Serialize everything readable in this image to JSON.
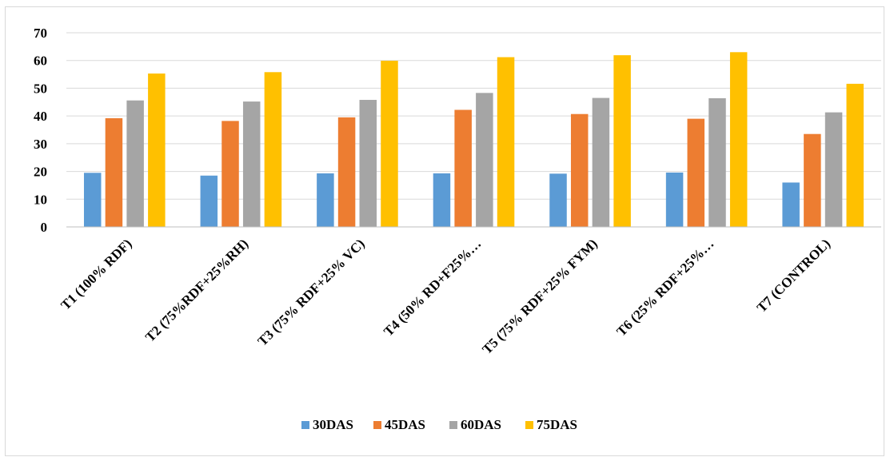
{
  "chart_data": {
    "type": "bar",
    "title": "",
    "xlabel": "",
    "ylabel": "",
    "ylim": [
      0,
      70
    ],
    "yticks": [
      0,
      10,
      20,
      30,
      40,
      50,
      60,
      70
    ],
    "grid": true,
    "legend_position": "bottom",
    "categories": [
      "T1 (100% RDF)",
      "T2 (75%RDF+25%RH)",
      "T3 (75% RDF+25% VC)",
      "T4 (50% RD+F25%…",
      "T5 (75% RDF+25% FYM)",
      "T6 (25% RDF+25%…",
      "T7 (CONTROL)"
    ],
    "series": [
      {
        "name": "30DAS",
        "color": "#5b9bd5",
        "values": [
          19.5,
          18.5,
          19.3,
          19.3,
          19.2,
          19.6,
          16.0
        ]
      },
      {
        "name": "45DAS",
        "color": "#ed7d31",
        "values": [
          39.2,
          38.2,
          39.5,
          42.2,
          40.7,
          39.0,
          33.5
        ]
      },
      {
        "name": "60DAS",
        "color": "#a5a5a5",
        "values": [
          45.6,
          45.2,
          45.8,
          48.3,
          46.5,
          46.4,
          41.3
        ]
      },
      {
        "name": "75DAS",
        "color": "#ffc000",
        "values": [
          55.3,
          55.8,
          59.9,
          61.2,
          61.9,
          63.0,
          51.6
        ]
      }
    ]
  }
}
